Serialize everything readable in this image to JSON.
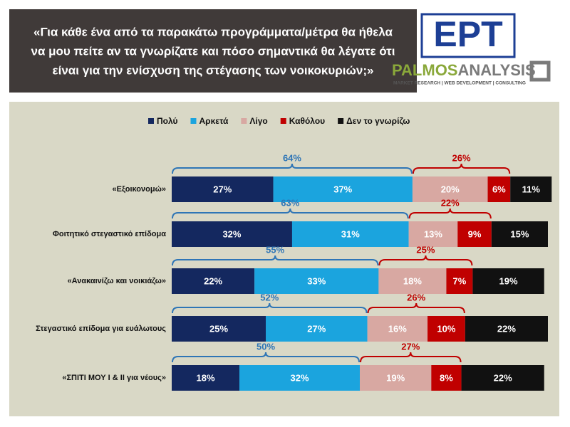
{
  "chart_data": {
    "type": "stacked-bar",
    "title": [
      "«Για κάθε ένα από τα παρακάτω προγράμματα/μέτρα θα ήθελα",
      "να μου πείτε αν τα γνωρίζατε και πόσο σημαντικά θα λέγατε ότι",
      "είναι για την ενίσχυση της στέγασης των νοικοκυριών;»"
    ],
    "logos": {
      "ert": "ΕΡΤ",
      "palmos": "PALMOS",
      "analysis": "ANALYSIS",
      "tagline": "MARKET RESEARCH | WEB DEVELOPMENT | CONSULTING"
    },
    "categories": [
      "«Εξοικονομώ»",
      "Φοιτητικό στεγαστικό επίδομα",
      "«Ανακαινίζω και νοικιάζω»",
      "Στεγαστικό επίδομα για ευάλωτους",
      "«ΣΠΙΤΙ ΜΟΥ Ι & ΙΙ για νέους»"
    ],
    "xlim": [
      0,
      100
    ],
    "series": [
      {
        "name": "Πολύ",
        "color": "#14285f",
        "values": [
          27,
          32,
          22,
          25,
          18
        ],
        "value_labels": [
          "27%",
          "32%",
          "22%",
          "25%",
          "18%"
        ]
      },
      {
        "name": "Αρκετά",
        "color": "#1ba4de",
        "values": [
          37,
          31,
          33,
          27,
          32
        ],
        "value_labels": [
          "37%",
          "31%",
          "33%",
          "27%",
          "32%"
        ]
      },
      {
        "name": "Λίγο",
        "color": "#d8a8a2",
        "values": [
          20,
          13,
          18,
          16,
          19
        ],
        "value_labels": [
          "20%",
          "13%",
          "18%",
          "16%",
          "19%"
        ]
      },
      {
        "name": "Καθόλου",
        "color": "#c00000",
        "values": [
          6,
          9,
          7,
          10,
          8
        ],
        "value_labels": [
          "6%",
          "9%",
          "7%",
          "10%",
          "8%"
        ]
      },
      {
        "name": "Δεν το γνωρίζω",
        "color": "#111111",
        "values": [
          11,
          15,
          19,
          22,
          22
        ],
        "value_labels": [
          "11%",
          "15%",
          "19%",
          "22%",
          "22%"
        ]
      }
    ],
    "brackets": [
      {
        "color": "#2e75b6",
        "values": [
          64,
          63,
          55,
          52,
          50
        ],
        "value_labels": [
          "64%",
          "63%",
          "55%",
          "52%",
          "50%"
        ]
      },
      {
        "color": "#c00000",
        "values": [
          26,
          22,
          25,
          26,
          27
        ],
        "value_labels": [
          "26%",
          "22%",
          "25%",
          "26%",
          "27%"
        ]
      }
    ]
  }
}
